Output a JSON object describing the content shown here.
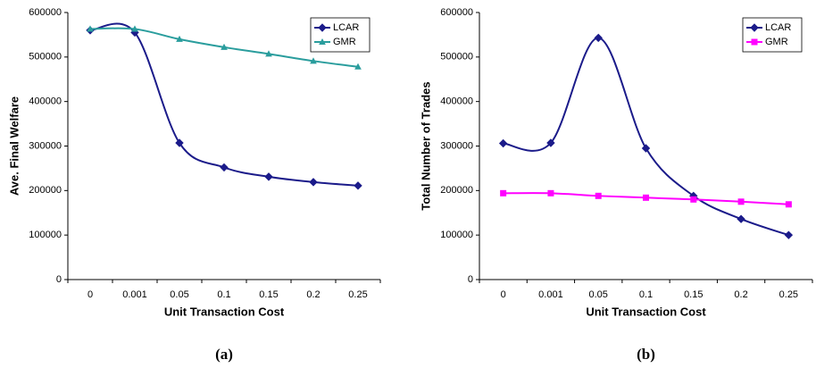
{
  "chart_data": [
    {
      "type": "line",
      "caption": "(a)",
      "xlabel": "Unit Transaction Cost",
      "ylabel": "Ave. Final Welfare",
      "categories": [
        "0",
        "0.001",
        "0.05",
        "0.1",
        "0.15",
        "0.2",
        "0.25"
      ],
      "series": [
        {
          "name": "LCAR",
          "color": "#1b1b8a",
          "marker": "diamond",
          "values": [
            560000,
            555000,
            307000,
            252000,
            231000,
            219000,
            211000
          ]
        },
        {
          "name": "GMR",
          "color": "#2a9d9d",
          "marker": "triangle",
          "values": [
            563000,
            563000,
            540000,
            522000,
            507000,
            491000,
            478000
          ]
        }
      ],
      "ylim": [
        0,
        600000
      ],
      "yticks": [
        0,
        100000,
        200000,
        300000,
        400000,
        500000,
        600000
      ],
      "legend": "upper right",
      "smooth": true
    },
    {
      "type": "line",
      "caption": "(b)",
      "xlabel": "Unit Transaction Cost",
      "ylabel": "Total Number of Trades",
      "categories": [
        "0",
        "0.001",
        "0.05",
        "0.1",
        "0.15",
        "0.2",
        "0.25"
      ],
      "series": [
        {
          "name": "LCAR",
          "color": "#1b1b8a",
          "marker": "diamond",
          "values": [
            306000,
            307000,
            543000,
            295000,
            188000,
            136000,
            100000
          ]
        },
        {
          "name": "GMR",
          "color": "#ff00ff",
          "marker": "square",
          "values": [
            194000,
            194000,
            188000,
            184000,
            180000,
            175000,
            169000
          ]
        }
      ],
      "ylim": [
        0,
        600000
      ],
      "yticks": [
        0,
        100000,
        200000,
        300000,
        400000,
        500000,
        600000
      ],
      "legend": "upper right",
      "smooth": true
    }
  ]
}
